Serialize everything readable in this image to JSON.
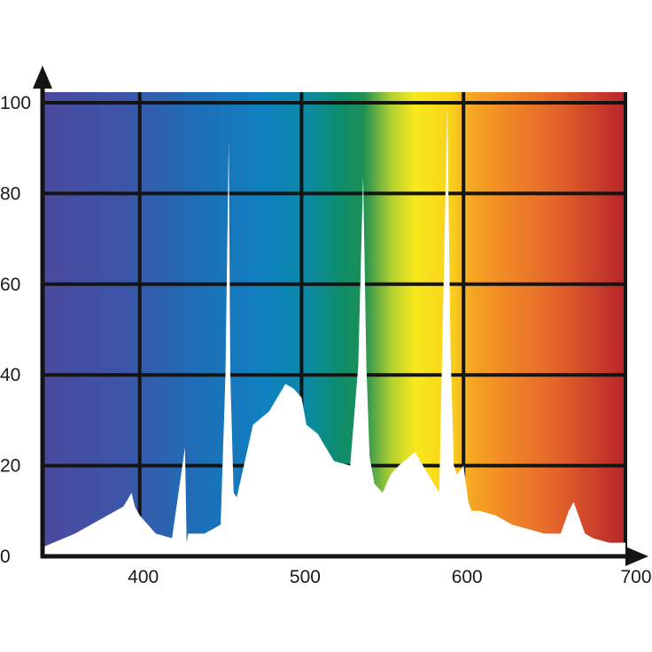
{
  "chart_data": {
    "type": "area",
    "title": "",
    "xlabel": "",
    "ylabel": "",
    "xlim": [
      340,
      700
    ],
    "ylim": [
      0,
      100
    ],
    "x_ticks": [
      400,
      500,
      600,
      700
    ],
    "y_ticks": [
      0,
      20,
      40,
      60,
      80,
      100
    ],
    "x_tick_labels": [
      "400",
      "500",
      "600",
      "700"
    ],
    "y_tick_labels": [
      "0",
      "20",
      "40",
      "60",
      "80",
      "100"
    ],
    "grid": true,
    "legend": "none",
    "background": "visible-spectrum gradient",
    "spectrum_colors": [
      "#4b4a9e",
      "#2f63ad",
      "#0f7fbe",
      "#0b8e7c",
      "#f6e61e",
      "#f18b25",
      "#b8242b"
    ],
    "fill_color": "#ffffff",
    "series": [
      {
        "x": [
          340,
          360,
          375,
          390,
          395,
          397,
          400,
          410,
          420,
          428,
          429,
          430,
          432,
          440,
          450,
          453,
          455,
          456,
          458,
          460,
          470,
          480,
          490,
          495,
          500,
          503,
          510,
          520,
          530,
          535,
          538,
          540,
          542,
          545,
          550,
          555,
          560,
          570,
          575,
          580,
          585,
          590,
          592,
          594,
          596,
          600,
          603,
          605,
          610,
          620,
          630,
          640,
          650,
          660,
          665,
          668,
          670,
          675,
          680,
          690,
          700
        ],
        "y": [
          2,
          5,
          8,
          11,
          14,
          11,
          9,
          5,
          4,
          24,
          3,
          5,
          5,
          5,
          7,
          40,
          92,
          40,
          14,
          13,
          29,
          32,
          38,
          37,
          35,
          29,
          27,
          21,
          20,
          42,
          84,
          42,
          22,
          16,
          14,
          18,
          20,
          23,
          20,
          17,
          14,
          99,
          45,
          20,
          18,
          20,
          12,
          10,
          10,
          9,
          7,
          6,
          5,
          5,
          10,
          12,
          10,
          5,
          4,
          3,
          3
        ]
      }
    ]
  }
}
